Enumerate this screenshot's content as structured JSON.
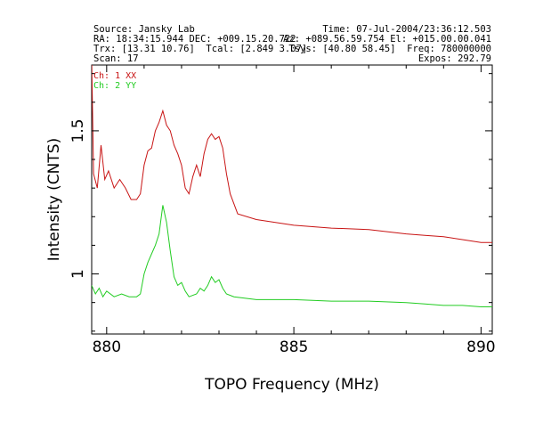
{
  "header": {
    "left": [
      "Source: Jansky Lab",
      "RA: 18:34:15.944 DEC: +009.15.20.722",
      "Trx: [13.31 10.76]  Tcal: [2.849 3.07]",
      "Scan: 17"
    ],
    "right": [
      "Time: 07-Jul-2004/23:36:12.503",
      "Az: +089.56.59.754 El: +015.00.00.041",
      "Tsys: [40.80 58.45]  Freq: 780000000",
      "Expos: 292.79"
    ]
  },
  "chart_data": {
    "type": "line",
    "xlabel": "TOPO Frequency (MHz)",
    "ylabel": "Intensity (CNTS)",
    "xlim": [
      879.6,
      890.3
    ],
    "ylim": [
      0.79,
      1.73
    ],
    "xticks": [
      880,
      885,
      890
    ],
    "yticks": [
      1,
      1.5
    ],
    "series": [
      {
        "name": "Ch: 1 XX",
        "color": "#c81414",
        "points": [
          [
            879.6,
            1.75
          ],
          [
            879.65,
            1.35
          ],
          [
            879.75,
            1.3
          ],
          [
            879.85,
            1.45
          ],
          [
            879.95,
            1.33
          ],
          [
            880.05,
            1.36
          ],
          [
            880.2,
            1.3
          ],
          [
            880.35,
            1.33
          ],
          [
            880.5,
            1.3
          ],
          [
            880.65,
            1.26
          ],
          [
            880.8,
            1.26
          ],
          [
            880.9,
            1.28
          ],
          [
            881.0,
            1.38
          ],
          [
            881.1,
            1.43
          ],
          [
            881.2,
            1.44
          ],
          [
            881.3,
            1.5
          ],
          [
            881.4,
            1.53
          ],
          [
            881.5,
            1.57
          ],
          [
            881.6,
            1.52
          ],
          [
            881.7,
            1.5
          ],
          [
            881.8,
            1.45
          ],
          [
            881.9,
            1.42
          ],
          [
            882.0,
            1.38
          ],
          [
            882.1,
            1.3
          ],
          [
            882.2,
            1.28
          ],
          [
            882.3,
            1.34
          ],
          [
            882.4,
            1.38
          ],
          [
            882.5,
            1.34
          ],
          [
            882.6,
            1.42
          ],
          [
            882.7,
            1.47
          ],
          [
            882.8,
            1.49
          ],
          [
            882.9,
            1.47
          ],
          [
            883.0,
            1.48
          ],
          [
            883.1,
            1.44
          ],
          [
            883.2,
            1.35
          ],
          [
            883.3,
            1.28
          ],
          [
            883.5,
            1.21
          ],
          [
            884.0,
            1.19
          ],
          [
            885.0,
            1.17
          ],
          [
            886.0,
            1.16
          ],
          [
            887.0,
            1.155
          ],
          [
            888.0,
            1.14
          ],
          [
            888.5,
            1.135
          ],
          [
            889.0,
            1.13
          ],
          [
            889.5,
            1.12
          ],
          [
            890.0,
            1.11
          ],
          [
            890.3,
            1.11
          ]
        ]
      },
      {
        "name": "Ch: 2 YY",
        "color": "#22cc22",
        "points": [
          [
            879.6,
            0.96
          ],
          [
            879.7,
            0.93
          ],
          [
            879.8,
            0.95
          ],
          [
            879.9,
            0.92
          ],
          [
            880.0,
            0.94
          ],
          [
            880.2,
            0.92
          ],
          [
            880.4,
            0.93
          ],
          [
            880.6,
            0.92
          ],
          [
            880.8,
            0.92
          ],
          [
            880.9,
            0.93
          ],
          [
            881.0,
            1.0
          ],
          [
            881.1,
            1.04
          ],
          [
            881.2,
            1.07
          ],
          [
            881.3,
            1.1
          ],
          [
            881.4,
            1.14
          ],
          [
            881.5,
            1.24
          ],
          [
            881.6,
            1.18
          ],
          [
            881.7,
            1.08
          ],
          [
            881.8,
            0.99
          ],
          [
            881.9,
            0.96
          ],
          [
            882.0,
            0.97
          ],
          [
            882.1,
            0.94
          ],
          [
            882.2,
            0.92
          ],
          [
            882.4,
            0.93
          ],
          [
            882.5,
            0.95
          ],
          [
            882.6,
            0.94
          ],
          [
            882.7,
            0.96
          ],
          [
            882.8,
            0.99
          ],
          [
            882.9,
            0.97
          ],
          [
            883.0,
            0.98
          ],
          [
            883.1,
            0.95
          ],
          [
            883.2,
            0.93
          ],
          [
            883.4,
            0.92
          ],
          [
            884.0,
            0.91
          ],
          [
            885.0,
            0.91
          ],
          [
            886.0,
            0.905
          ],
          [
            887.0,
            0.905
          ],
          [
            888.0,
            0.9
          ],
          [
            888.5,
            0.895
          ],
          [
            889.0,
            0.89
          ],
          [
            889.5,
            0.89
          ],
          [
            890.0,
            0.885
          ],
          [
            890.3,
            0.885
          ]
        ]
      }
    ]
  }
}
